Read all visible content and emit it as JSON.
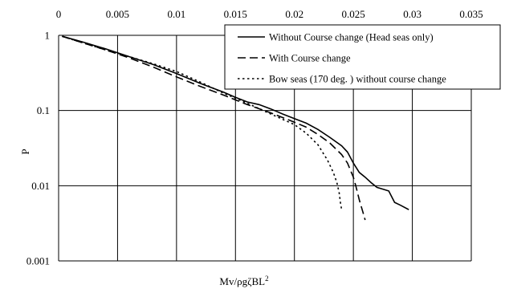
{
  "chart_data": {
    "type": "line",
    "title": "",
    "xlabel": "Mv/ρgζBL²",
    "xlabel_main": "Mv/ρgζBL",
    "xlabel_sup": "2",
    "ylabel": "P",
    "xlim": [
      0,
      0.035
    ],
    "ylim": [
      0.001,
      1
    ],
    "y_scale": "log",
    "x_axis_position": "top",
    "grid": true,
    "legend_position": "top-right",
    "x_ticks": [
      "0",
      "0.005",
      "0.01",
      "0.015",
      "0.02",
      "0.025",
      "0.03",
      "0.035"
    ],
    "x_tick_values": [
      0,
      0.005,
      0.01,
      0.015,
      0.02,
      0.025,
      0.03,
      0.035
    ],
    "y_ticks": [
      "1",
      "0.1",
      "0.01",
      "0.001"
    ],
    "y_tick_values": [
      1,
      0.1,
      0.01,
      0.001
    ],
    "series": [
      {
        "name": "Without Course change (Head seas only)",
        "style": "solid",
        "x": [
          0.0003,
          0.002,
          0.004,
          0.006,
          0.008,
          0.01,
          0.012,
          0.014,
          0.015,
          0.016,
          0.017,
          0.018,
          0.019,
          0.02,
          0.021,
          0.022,
          0.023,
          0.024,
          0.0245,
          0.025,
          0.0255,
          0.026,
          0.0265,
          0.027,
          0.0275,
          0.028,
          0.0285,
          0.029,
          0.0297
        ],
        "y": [
          0.97,
          0.82,
          0.66,
          0.52,
          0.41,
          0.31,
          0.23,
          0.175,
          0.15,
          0.13,
          0.12,
          0.105,
          0.09,
          0.078,
          0.068,
          0.056,
          0.044,
          0.034,
          0.028,
          0.02,
          0.015,
          0.013,
          0.011,
          0.0095,
          0.009,
          0.0085,
          0.006,
          0.0055,
          0.0048
        ]
      },
      {
        "name": "With Course change",
        "style": "dashed",
        "x": [
          0.0003,
          0.002,
          0.004,
          0.006,
          0.008,
          0.01,
          0.012,
          0.014,
          0.016,
          0.018,
          0.02,
          0.021,
          0.022,
          0.023,
          0.024,
          0.0245,
          0.025,
          0.0252,
          0.0255,
          0.0258,
          0.026
        ],
        "y": [
          0.97,
          0.8,
          0.64,
          0.5,
          0.38,
          0.28,
          0.21,
          0.16,
          0.12,
          0.093,
          0.07,
          0.06,
          0.048,
          0.037,
          0.026,
          0.02,
          0.013,
          0.01,
          0.0065,
          0.0045,
          0.0035
        ]
      },
      {
        "name": "Bow seas (170 deg. ) without course change",
        "style": "dotted",
        "x": [
          0.0003,
          0.002,
          0.004,
          0.006,
          0.008,
          0.01,
          0.012,
          0.014,
          0.016,
          0.018,
          0.02,
          0.021,
          0.022,
          0.0228,
          0.0233,
          0.0236,
          0.0238,
          0.0239,
          0.024
        ],
        "y": [
          0.97,
          0.8,
          0.64,
          0.52,
          0.42,
          0.33,
          0.24,
          0.17,
          0.125,
          0.09,
          0.065,
          0.05,
          0.035,
          0.022,
          0.015,
          0.011,
          0.008,
          0.006,
          0.0048
        ]
      }
    ]
  }
}
